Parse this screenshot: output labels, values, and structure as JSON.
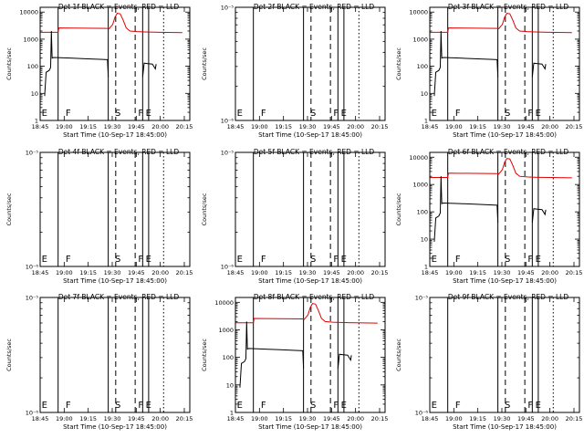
{
  "chart_data": [
    {
      "type": "line",
      "title": "Det 1f BLACK = Events, RED = LLD",
      "ylabel": "Counts/sec",
      "xlabel": "Start Time (10-Sep-17 18:45:00)",
      "yscale": "log",
      "ylim": [
        1,
        15000
      ],
      "y_ticks": [
        1,
        10,
        100,
        1000,
        10000
      ],
      "y_tick_labels": [
        "1",
        "10",
        "100",
        "1000",
        "10000"
      ],
      "x_tick_labels": [
        "18:45",
        "19:00",
        "19:15",
        "19:30",
        "19:45",
        "20:00",
        "20:15"
      ],
      "has_data": true,
      "event_labels": [
        "E",
        "F",
        "S",
        "F",
        "E"
      ]
    },
    {
      "type": "line",
      "title": "Det 2f BLACK = Events, RED = LLD",
      "ylabel": "Counts/sec",
      "xlabel": "Start Time (10-Sep-17 18:45:00)",
      "yscale": "log",
      "ylim": [
        1e-06,
        1e-05
      ],
      "y_ticks": [
        1e-06,
        1e-05
      ],
      "y_tick_labels": [
        "10⁻⁶",
        "10⁻⁵"
      ],
      "x_tick_labels": [
        "18:45",
        "19:00",
        "19:15",
        "19:30",
        "19:45",
        "20:00",
        "20:15"
      ],
      "has_data": false,
      "event_labels": [
        "E",
        "F",
        "S",
        "F",
        "E"
      ]
    },
    {
      "type": "line",
      "title": "Det 3f BLACK = Events, RED = LLD",
      "ylabel": "Counts/sec",
      "xlabel": "Start Time (10-Sep-17 18:45:00)",
      "yscale": "log",
      "ylim": [
        1,
        15000
      ],
      "y_ticks": [
        1,
        10,
        100,
        1000,
        10000
      ],
      "y_tick_labels": [
        "1",
        "10",
        "100",
        "1000",
        "10000"
      ],
      "x_tick_labels": [
        "18:45",
        "19:00",
        "19:15",
        "19:30",
        "19:45",
        "20:00",
        "20:15"
      ],
      "has_data": true,
      "event_labels": [
        "E",
        "F",
        "S",
        "F",
        "E"
      ]
    },
    {
      "type": "line",
      "title": "Det 4f BLACK = Events, RED = LLD",
      "ylabel": "Counts/sec",
      "xlabel": "Start Time (10-Sep-17 18:45:00)",
      "yscale": "log",
      "ylim": [
        1e-06,
        1e-05
      ],
      "y_ticks": [
        1e-06,
        1e-05
      ],
      "y_tick_labels": [
        "10⁻⁶",
        "10⁻⁵"
      ],
      "x_tick_labels": [
        "18:45",
        "19:00",
        "19:15",
        "19:30",
        "19:45",
        "20:00",
        "20:15"
      ],
      "has_data": false,
      "event_labels": [
        "E",
        "F",
        "S",
        "F",
        "E"
      ]
    },
    {
      "type": "line",
      "title": "Det 5f BLACK = Events, RED = LLD",
      "ylabel": "Counts/sec",
      "xlabel": "Start Time (10-Sep-17 18:45:00)",
      "yscale": "log",
      "ylim": [
        1e-06,
        1e-05
      ],
      "y_ticks": [
        1e-06,
        1e-05
      ],
      "y_tick_labels": [
        "10⁻⁶",
        "10⁻⁵"
      ],
      "x_tick_labels": [
        "18:45",
        "19:00",
        "19:15",
        "19:30",
        "19:45",
        "20:00",
        "20:15"
      ],
      "has_data": false,
      "event_labels": [
        "E",
        "F",
        "S",
        "F",
        "E"
      ]
    },
    {
      "type": "line",
      "title": "Det 6f BLACK = Events, RED = LLD",
      "ylabel": "Counts/sec",
      "xlabel": "Start Time (10-Sep-17 18:45:00)",
      "yscale": "log",
      "ylim": [
        1,
        15000
      ],
      "y_ticks": [
        1,
        10,
        100,
        1000,
        10000
      ],
      "y_tick_labels": [
        "1",
        "10",
        "100",
        "1000",
        "10000"
      ],
      "x_tick_labels": [
        "18:45",
        "19:00",
        "19:15",
        "19:30",
        "19:45",
        "20:00",
        "20:15"
      ],
      "has_data": true,
      "event_labels": [
        "E",
        "F",
        "S",
        "F",
        "E"
      ]
    },
    {
      "type": "line",
      "title": "Det 7f BLACK = Events, RED = LLD",
      "ylabel": "Counts/sec",
      "xlabel": "Start Time (10-Sep-17 18:45:00)",
      "yscale": "log",
      "ylim": [
        1e-06,
        1e-05
      ],
      "y_ticks": [
        1e-06,
        1e-05
      ],
      "y_tick_labels": [
        "10⁻⁶",
        "10⁻⁵"
      ],
      "x_tick_labels": [
        "18:45",
        "19:00",
        "19:15",
        "19:30",
        "19:45",
        "20:00",
        "20:15"
      ],
      "has_data": false,
      "event_labels": [
        "E",
        "F",
        "S",
        "F",
        "E"
      ]
    },
    {
      "type": "line",
      "title": "Det 8f BLACK = Events, RED = LLD",
      "ylabel": "Counts/sec",
      "xlabel": "Start Time (10-Sep-17 18:45:00)",
      "yscale": "log",
      "ylim": [
        1,
        15000
      ],
      "y_ticks": [
        1,
        10,
        100,
        1000,
        10000
      ],
      "y_tick_labels": [
        "1",
        "10",
        "100",
        "1000",
        "10000"
      ],
      "x_tick_labels": [
        "18:45",
        "19:00",
        "19:15",
        "19:30",
        "19:45",
        "20:00",
        "20:15"
      ],
      "has_data": true,
      "event_labels": [
        "E",
        "F",
        "S",
        "F",
        "E"
      ]
    },
    {
      "type": "line",
      "title": "Det 9f BLACK = Events, RED = LLD",
      "ylabel": "Counts/sec",
      "xlabel": "Start Time (10-Sep-17 18:45:00)",
      "yscale": "log",
      "ylim": [
        1e-06,
        1e-05
      ],
      "y_ticks": [
        1e-06,
        1e-05
      ],
      "y_tick_labels": [
        "10⁻⁶",
        "10⁻⁵"
      ],
      "x_tick_labels": [
        "18:45",
        "19:00",
        "19:15",
        "19:30",
        "19:45",
        "20:00",
        "20:15"
      ],
      "has_data": false,
      "event_labels": [
        "E",
        "F",
        "S",
        "F",
        "E"
      ]
    }
  ],
  "colors": {
    "events": "#000000",
    "lld": "#e00000",
    "axes": "#000000"
  }
}
